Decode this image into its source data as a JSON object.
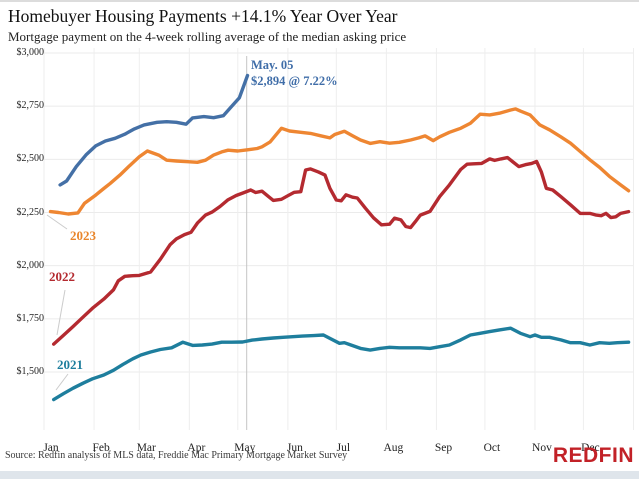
{
  "page": {
    "title": "Homebuyer Housing Payments +14.1% Year Over Year",
    "subtitle": "Mortgage payment on the 4-week rolling average of the median asking price",
    "source": "Source: Redfin analysis of MLS data, Freddie Mac Primary Mortgage Market Survey",
    "logo_text": "REDFIN",
    "logo_color": "#c22127"
  },
  "chart_data": {
    "type": "line",
    "title": "Homebuyer Housing Payments +14.1% Year Over Year",
    "subtitle": "Mortgage payment on the 4-week rolling average of the median asking price",
    "x_axis": {
      "tick_labels": [
        "Jan",
        "Feb",
        "Mar",
        "Apr",
        "May",
        "Jun",
        "Jul",
        "Aug",
        "Sep",
        "Oct",
        "Nov",
        "Dec"
      ],
      "unit": "week of year (day-of-year used for x)"
    },
    "y_axis": {
      "tick_labels": [
        "$3,000",
        "$2,750",
        "$2,500",
        "$2,250",
        "$2,000",
        "$1,750",
        "$1,500"
      ],
      "tick_values": [
        3000,
        2750,
        2500,
        2250,
        2000,
        1750,
        1500
      ],
      "range": [
        1200,
        3050
      ]
    },
    "grid": "on",
    "annotation": {
      "line1": "May. 05",
      "line2": "$2,894 @ 7.22%",
      "color": "#3f6da8",
      "marker_day": 125,
      "marker_value": 2894,
      "marker_rate_pct": 7.22
    },
    "series": [
      {
        "label": "",
        "name": "current-year-to-may-05",
        "color": "#4470a6",
        "points": [
          [
            10,
            2380
          ],
          [
            14,
            2398
          ],
          [
            20,
            2466
          ],
          [
            26,
            2521
          ],
          [
            32,
            2563
          ],
          [
            38,
            2586
          ],
          [
            44,
            2599
          ],
          [
            50,
            2618
          ],
          [
            56,
            2643
          ],
          [
            62,
            2662
          ],
          [
            70,
            2674
          ],
          [
            76,
            2677
          ],
          [
            82,
            2674
          ],
          [
            88,
            2665
          ],
          [
            92,
            2695
          ],
          [
            99,
            2701
          ],
          [
            105,
            2696
          ],
          [
            111,
            2705
          ],
          [
            116,
            2747
          ],
          [
            121,
            2790
          ],
          [
            126,
            2894
          ]
        ]
      },
      {
        "label": "2023",
        "name": "year-2023",
        "color": "#ee8632",
        "points": [
          [
            4,
            2254
          ],
          [
            9,
            2250
          ],
          [
            15,
            2243
          ],
          [
            21,
            2248
          ],
          [
            25,
            2293
          ],
          [
            32,
            2332
          ],
          [
            37,
            2363
          ],
          [
            41,
            2387
          ],
          [
            47,
            2426
          ],
          [
            53,
            2470
          ],
          [
            59,
            2512
          ],
          [
            64,
            2539
          ],
          [
            71,
            2520
          ],
          [
            76,
            2496
          ],
          [
            82,
            2492
          ],
          [
            89,
            2489
          ],
          [
            95,
            2486
          ],
          [
            100,
            2496
          ],
          [
            105,
            2520
          ],
          [
            110,
            2535
          ],
          [
            114,
            2543
          ],
          [
            120,
            2539
          ],
          [
            126,
            2545
          ],
          [
            132,
            2551
          ],
          [
            135,
            2559
          ],
          [
            140,
            2582
          ],
          [
            147,
            2646
          ],
          [
            152,
            2633
          ],
          [
            159,
            2627
          ],
          [
            165,
            2622
          ],
          [
            171,
            2611
          ],
          [
            177,
            2601
          ],
          [
            180,
            2617
          ],
          [
            186,
            2632
          ],
          [
            191,
            2611
          ],
          [
            196,
            2591
          ],
          [
            202,
            2575
          ],
          [
            208,
            2583
          ],
          [
            214,
            2576
          ],
          [
            220,
            2580
          ],
          [
            227,
            2591
          ],
          [
            232,
            2601
          ],
          [
            236,
            2610
          ],
          [
            241,
            2588
          ],
          [
            245,
            2606
          ],
          [
            251,
            2627
          ],
          [
            258,
            2646
          ],
          [
            264,
            2670
          ],
          [
            270,
            2712
          ],
          [
            276,
            2709
          ],
          [
            282,
            2717
          ],
          [
            289,
            2732
          ],
          [
            292,
            2737
          ],
          [
            295,
            2727
          ],
          [
            301,
            2709
          ],
          [
            307,
            2662
          ],
          [
            313,
            2639
          ],
          [
            320,
            2606
          ],
          [
            326,
            2576
          ],
          [
            332,
            2537
          ],
          [
            338,
            2498
          ],
          [
            344,
            2462
          ],
          [
            350,
            2420
          ],
          [
            357,
            2380
          ],
          [
            362,
            2352
          ]
        ]
      },
      {
        "label": "2022",
        "name": "year-2022",
        "color": "#b42a30",
        "points": [
          [
            6,
            1631
          ],
          [
            12,
            1672
          ],
          [
            18,
            1714
          ],
          [
            24,
            1757
          ],
          [
            30,
            1800
          ],
          [
            37,
            1843
          ],
          [
            43,
            1886
          ],
          [
            46,
            1929
          ],
          [
            50,
            1950
          ],
          [
            55,
            1953
          ],
          [
            59,
            1954
          ],
          [
            66,
            1970
          ],
          [
            72,
            2030
          ],
          [
            78,
            2098
          ],
          [
            82,
            2126
          ],
          [
            87,
            2146
          ],
          [
            91,
            2157
          ],
          [
            95,
            2200
          ],
          [
            100,
            2238
          ],
          [
            104,
            2252
          ],
          [
            109,
            2278
          ],
          [
            114,
            2310
          ],
          [
            119,
            2330
          ],
          [
            123,
            2341
          ],
          [
            128,
            2356
          ],
          [
            131,
            2344
          ],
          [
            135,
            2350
          ],
          [
            139,
            2325
          ],
          [
            142,
            2307
          ],
          [
            147,
            2312
          ],
          [
            151,
            2329
          ],
          [
            155,
            2345
          ],
          [
            159,
            2348
          ],
          [
            162,
            2450
          ],
          [
            165,
            2455
          ],
          [
            170,
            2440
          ],
          [
            174,
            2426
          ],
          [
            177,
            2364
          ],
          [
            181,
            2309
          ],
          [
            184,
            2305
          ],
          [
            187,
            2333
          ],
          [
            191,
            2322
          ],
          [
            194,
            2318
          ],
          [
            199,
            2270
          ],
          [
            204,
            2225
          ],
          [
            209,
            2192
          ],
          [
            214,
            2195
          ],
          [
            217,
            2223
          ],
          [
            221,
            2215
          ],
          [
            224,
            2184
          ],
          [
            227,
            2179
          ],
          [
            230,
            2207
          ],
          [
            233,
            2238
          ],
          [
            239,
            2255
          ],
          [
            245,
            2325
          ],
          [
            251,
            2380
          ],
          [
            258,
            2452
          ],
          [
            262,
            2477
          ],
          [
            266,
            2479
          ],
          [
            271,
            2481
          ],
          [
            276,
            2502
          ],
          [
            279,
            2495
          ],
          [
            283,
            2502
          ],
          [
            287,
            2508
          ],
          [
            290,
            2490
          ],
          [
            294,
            2466
          ],
          [
            298,
            2475
          ],
          [
            302,
            2481
          ],
          [
            305,
            2490
          ],
          [
            308,
            2440
          ],
          [
            311,
            2364
          ],
          [
            315,
            2356
          ],
          [
            320,
            2325
          ],
          [
            326,
            2286
          ],
          [
            332,
            2246
          ],
          [
            338,
            2246
          ],
          [
            342,
            2238
          ],
          [
            345,
            2235
          ],
          [
            348,
            2246
          ],
          [
            351,
            2226
          ],
          [
            354,
            2230
          ],
          [
            357,
            2246
          ],
          [
            362,
            2254
          ]
        ]
      },
      {
        "label": "2021",
        "name": "year-2021",
        "color": "#1e7e9d",
        "points": [
          [
            6,
            1370
          ],
          [
            12,
            1398
          ],
          [
            18,
            1424
          ],
          [
            24,
            1447
          ],
          [
            30,
            1468
          ],
          [
            37,
            1486
          ],
          [
            43,
            1508
          ],
          [
            49,
            1536
          ],
          [
            55,
            1562
          ],
          [
            60,
            1580
          ],
          [
            66,
            1594
          ],
          [
            72,
            1606
          ],
          [
            79,
            1614
          ],
          [
            86,
            1640
          ],
          [
            92,
            1625
          ],
          [
            98,
            1627
          ],
          [
            104,
            1631
          ],
          [
            110,
            1640
          ],
          [
            116,
            1640
          ],
          [
            123,
            1641
          ],
          [
            129,
            1650
          ],
          [
            135,
            1655
          ],
          [
            142,
            1660
          ],
          [
            148,
            1663
          ],
          [
            154,
            1666
          ],
          [
            160,
            1669
          ],
          [
            167,
            1671
          ],
          [
            173,
            1674
          ],
          [
            177,
            1658
          ],
          [
            183,
            1635
          ],
          [
            186,
            1638
          ],
          [
            190,
            1627
          ],
          [
            196,
            1611
          ],
          [
            202,
            1603
          ],
          [
            208,
            1611
          ],
          [
            214,
            1616
          ],
          [
            220,
            1614
          ],
          [
            227,
            1614
          ],
          [
            233,
            1614
          ],
          [
            239,
            1611
          ],
          [
            245,
            1619
          ],
          [
            251,
            1627
          ],
          [
            258,
            1651
          ],
          [
            264,
            1674
          ],
          [
            270,
            1682
          ],
          [
            276,
            1690
          ],
          [
            282,
            1698
          ],
          [
            289,
            1706
          ],
          [
            295,
            1682
          ],
          [
            301,
            1666
          ],
          [
            304,
            1674
          ],
          [
            308,
            1663
          ],
          [
            313,
            1663
          ],
          [
            320,
            1651
          ],
          [
            326,
            1638
          ],
          [
            332,
            1638
          ],
          [
            338,
            1627
          ],
          [
            344,
            1638
          ],
          [
            350,
            1635
          ],
          [
            355,
            1638
          ],
          [
            362,
            1640
          ]
        ]
      }
    ]
  }
}
